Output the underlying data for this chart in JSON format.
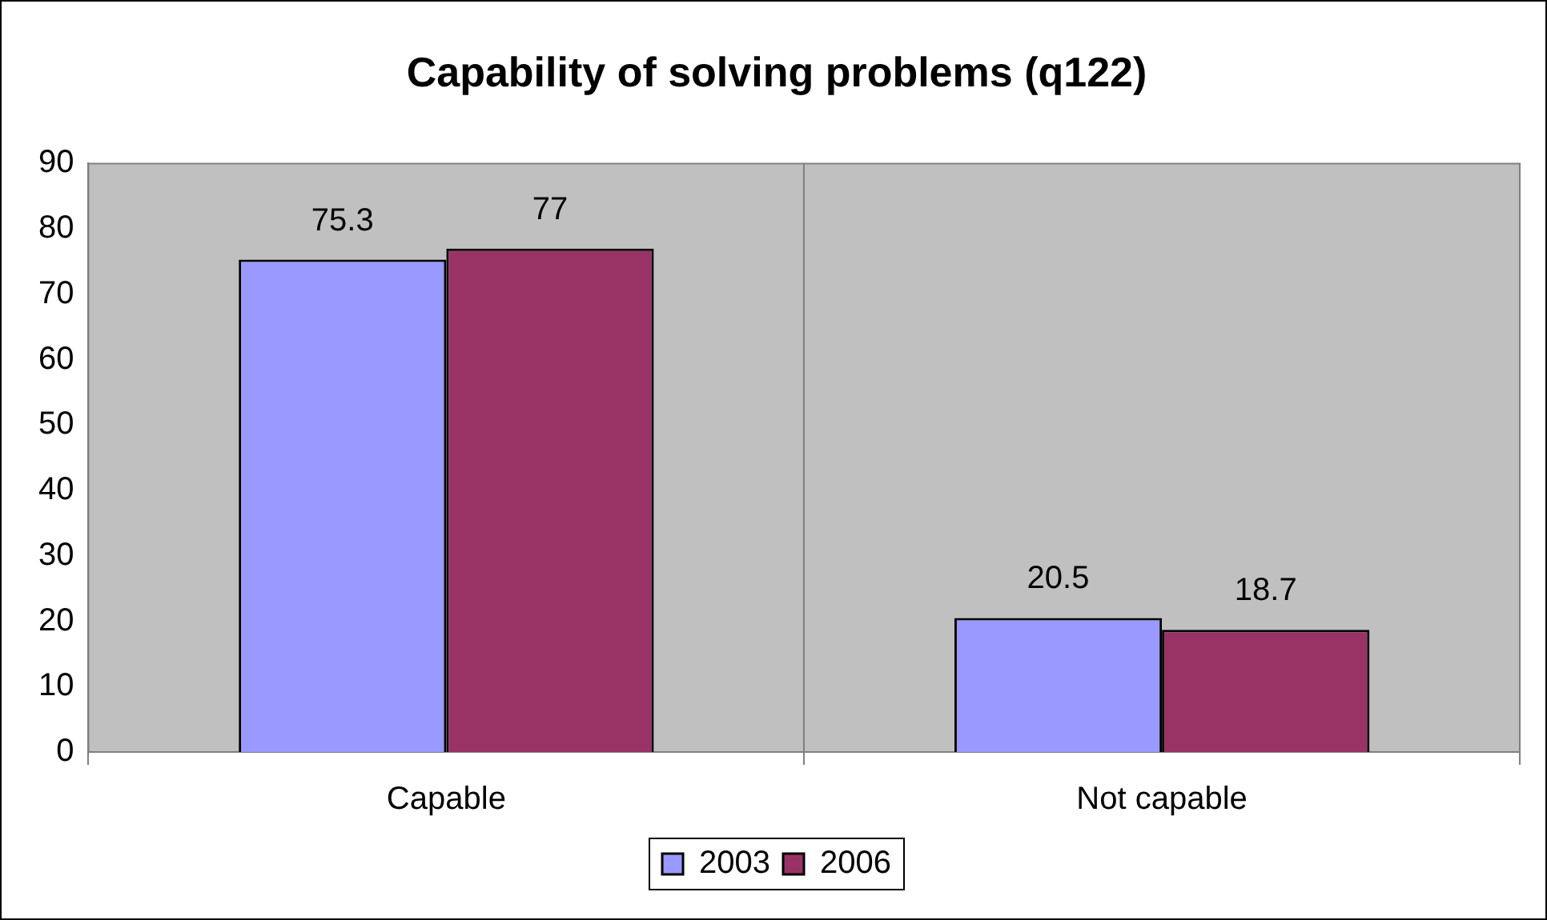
{
  "chart_data": {
    "type": "bar",
    "title": "Capability of solving problems (q122)",
    "categories": [
      "Capable",
      "Not capable"
    ],
    "series": [
      {
        "name": "2003",
        "color": "#9999ff",
        "values": [
          75.3,
          20.5
        ]
      },
      {
        "name": "2006",
        "color": "#993366",
        "values": [
          77,
          18.7
        ]
      }
    ],
    "ylim": [
      0,
      90
    ],
    "yticks": [
      0,
      10,
      20,
      30,
      40,
      50,
      60,
      70,
      80,
      90
    ],
    "grid": "x",
    "legend": "bottom",
    "data_labels": true
  }
}
